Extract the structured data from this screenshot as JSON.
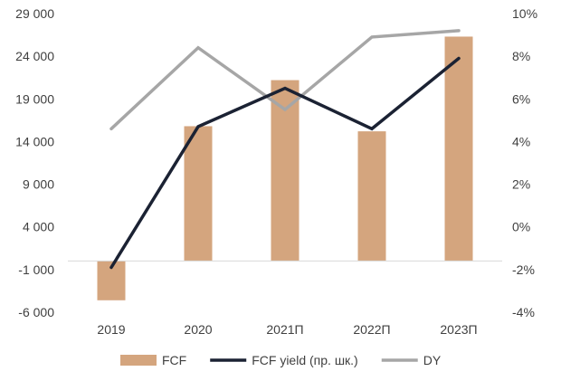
{
  "chart_data": {
    "type": "bar",
    "categories": [
      "2019",
      "2020",
      "2021П",
      "2022П",
      "2023П"
    ],
    "series": [
      {
        "name": "FCF",
        "kind": "bar",
        "axis": "left",
        "color": "#D4A57E",
        "values": [
          -4600,
          15800,
          21200,
          15200,
          26300
        ]
      },
      {
        "name": "FCF yield (пр. шк.)",
        "kind": "line",
        "axis": "right",
        "color": "#1B2233",
        "values": [
          -0.019,
          0.047,
          0.065,
          0.046,
          0.079
        ]
      },
      {
        "name": "DY",
        "kind": "line",
        "axis": "right",
        "color": "#A6A6A6",
        "values": [
          0.046,
          0.084,
          0.055,
          0.089,
          0.092
        ]
      }
    ],
    "y_left": {
      "min": -6000,
      "max": 29000,
      "ticks": [
        29000,
        24000,
        19000,
        14000,
        9000,
        4000,
        -1000,
        -6000
      ],
      "tick_labels": [
        "29 000",
        "24 000",
        "19 000",
        "14 000",
        "9 000",
        "4 000",
        "-1 000",
        "-6 000"
      ]
    },
    "y_right": {
      "min": -0.04,
      "max": 0.1,
      "ticks": [
        0.1,
        0.08,
        0.06,
        0.04,
        0.02,
        0.0,
        -0.02,
        -0.04
      ],
      "tick_labels": [
        "10%",
        "8%",
        "6%",
        "4%",
        "2%",
        "0%",
        "-2%",
        "-4%"
      ]
    },
    "legend": {
      "placement": "bottom"
    },
    "grid": false
  }
}
